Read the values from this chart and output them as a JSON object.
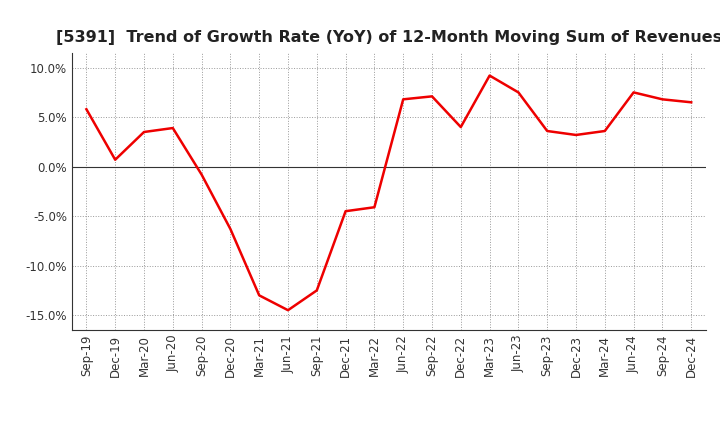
{
  "title": "[5391]  Trend of Growth Rate (YoY) of 12-Month Moving Sum of Revenues",
  "x_labels": [
    "Sep-19",
    "Dec-19",
    "Mar-20",
    "Jun-20",
    "Sep-20",
    "Dec-20",
    "Mar-21",
    "Jun-21",
    "Sep-21",
    "Dec-21",
    "Mar-22",
    "Jun-22",
    "Sep-22",
    "Dec-22",
    "Mar-23",
    "Jun-23",
    "Sep-23",
    "Dec-23",
    "Mar-24",
    "Jun-24",
    "Sep-24",
    "Dec-24"
  ],
  "y_values": [
    5.8,
    0.7,
    3.5,
    3.9,
    -0.8,
    -6.3,
    -13.0,
    -14.5,
    -12.5,
    -4.5,
    -4.1,
    6.8,
    7.1,
    4.0,
    9.2,
    7.5,
    3.6,
    3.2,
    3.6,
    7.5,
    6.8,
    6.5
  ],
  "line_color": "#ee0000",
  "line_width": 1.8,
  "ylim": [
    -16.5,
    11.5
  ],
  "yticks": [
    -15.0,
    -10.0,
    -5.0,
    0.0,
    5.0,
    10.0
  ],
  "background_color": "#ffffff",
  "grid_color": "#999999",
  "title_fontsize": 11.5,
  "tick_fontsize": 8.5,
  "zero_line_color": "#333333",
  "spine_color": "#333333"
}
